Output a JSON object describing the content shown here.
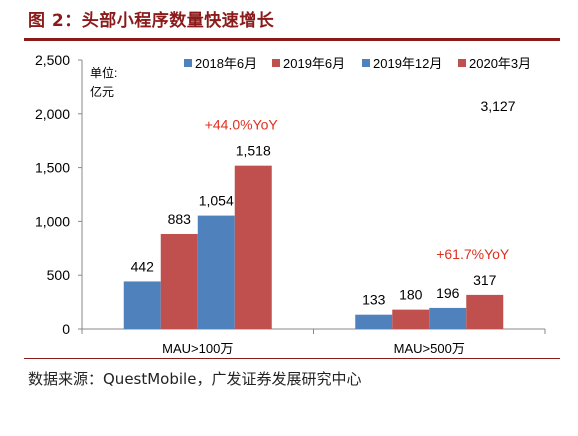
{
  "figure_title": "图 2：头部小程序数量快速增长",
  "source_note": "数据来源：QuestMobile，广发证券发展研究中心",
  "chart_data": {
    "type": "bar",
    "title": "",
    "unit_label_line1": "单位:",
    "unit_label_line2": "亿元",
    "categories": [
      "MAU>100万",
      "MAU>500万"
    ],
    "series": [
      {
        "name": "2018年6月",
        "color": "#4f81bd",
        "values": [
          442,
          133
        ],
        "labels": [
          "442",
          "133"
        ]
      },
      {
        "name": "2019年6月",
        "color": "#c0504d",
        "values": [
          883,
          180
        ],
        "labels": [
          "883",
          "180"
        ]
      },
      {
        "name": "2019年12月",
        "color": "#4f81bd",
        "values": [
          1054,
          196
        ],
        "labels": [
          "1,054",
          "196"
        ]
      },
      {
        "name": "2020年3月",
        "color": "#c0504d",
        "values": [
          1518,
          317
        ],
        "labels": [
          "1,518",
          "317"
        ]
      }
    ],
    "yticks": [
      0,
      500,
      1000,
      1500,
      2000,
      2500
    ],
    "ytick_labels": [
      "0",
      "500",
      "1,000",
      "1,500",
      "2,000",
      "2,500"
    ],
    "ylim": [
      0,
      2500
    ],
    "annotations": [
      {
        "text": "+44.0%YoY",
        "color": "#e0301e",
        "category": 0
      },
      {
        "text": "+61.7%YoY",
        "color": "#e0301e",
        "category": 1
      }
    ],
    "stray_label": "3,127",
    "grid": false,
    "legend_position": "top"
  }
}
